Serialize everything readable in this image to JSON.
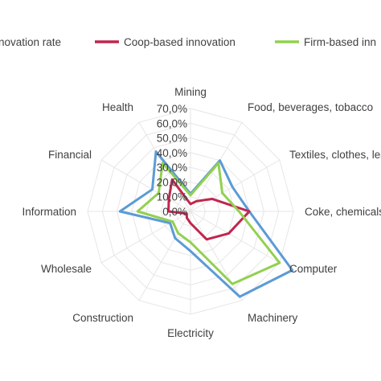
{
  "chart_data": {
    "type": "radar",
    "title": "",
    "categories": [
      "Mining",
      "Food, beverages, tobacco",
      "Textiles, clothes, leather",
      "Coke, chemicals",
      "Computer",
      "Machinery",
      "Electricity",
      "Construction",
      "Wholesale",
      "Information",
      "Financial",
      "Health"
    ],
    "r_ticks": [
      "0,0%",
      "10,0%",
      "20,0%",
      "30,0%",
      "40,0%",
      "50,0%",
      "60,0%",
      "70,0%"
    ],
    "rlim": [
      0,
      70
    ],
    "legend_position": "top",
    "series": [
      {
        "name": "Innovation rate",
        "color": "#5b9bd5",
        "values": [
          12,
          40,
          33,
          40,
          80,
          67,
          27,
          21,
          16,
          48,
          30,
          47
        ]
      },
      {
        "name": "Coop-based innovation",
        "color": "#c0264e",
        "values": [
          5,
          8,
          17,
          40,
          30,
          22,
          8,
          5,
          3,
          15,
          17,
          25
        ]
      },
      {
        "name": "Firm-based innovation",
        "color": "#92d050",
        "values": [
          11,
          38,
          25,
          33,
          70,
          57,
          21,
          17,
          14,
          36,
          25,
          38
        ]
      }
    ],
    "legend_display": [
      "novation rate",
      "Coop-based innovation",
      "Firm-based inn"
    ]
  }
}
